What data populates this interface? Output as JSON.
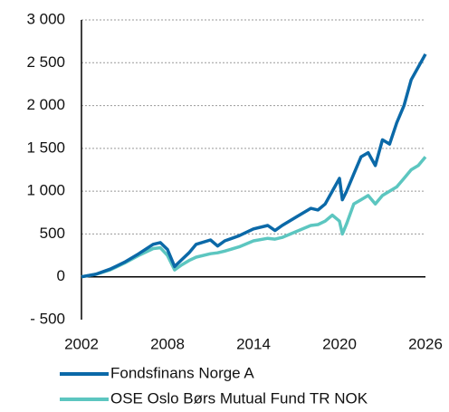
{
  "chart_data": {
    "type": "line",
    "x": [
      2002,
      2003,
      2004,
      2005,
      2006,
      2007,
      2007.5,
      2008,
      2008.5,
      2009,
      2009.5,
      2010,
      2011,
      2011.5,
      2012,
      2013,
      2014,
      2015,
      2015.5,
      2016,
      2017,
      2018,
      2018.5,
      2019,
      2019.5,
      2020,
      2020.2,
      2020.5,
      2021,
      2021.5,
      2022,
      2022.5,
      2023,
      2023.5,
      2024,
      2024.5,
      2025,
      2025.5,
      2026
    ],
    "series": [
      {
        "name": "Fondsfinans Norge A",
        "color": "#0b69a8",
        "values": [
          0,
          30,
          90,
          170,
          270,
          380,
          400,
          320,
          120,
          200,
          280,
          380,
          430,
          360,
          420,
          480,
          560,
          600,
          540,
          600,
          700,
          800,
          780,
          850,
          1000,
          1150,
          900,
          1000,
          1200,
          1400,
          1450,
          1300,
          1600,
          1550,
          1800,
          2000,
          2300,
          2450,
          2600
        ]
      },
      {
        "name": "OSE Oslo Børs Mutual Fund TR NOK",
        "color": "#5cc6c0",
        "values": [
          0,
          30,
          80,
          160,
          250,
          330,
          340,
          250,
          80,
          140,
          190,
          230,
          270,
          280,
          300,
          350,
          420,
          450,
          440,
          460,
          530,
          600,
          610,
          650,
          720,
          650,
          500,
          620,
          850,
          900,
          950,
          850,
          950,
          1000,
          1050,
          1150,
          1250,
          1300,
          1400
        ]
      }
    ],
    "xlim": [
      2002,
      2026
    ],
    "xticks": [
      2002,
      2008,
      2014,
      2020,
      2026
    ],
    "ylim": [
      -500,
      3000
    ],
    "yticks": [
      {
        "value": -500,
        "label": "- 500"
      },
      0,
      500,
      {
        "value": 1000,
        "label": "1 000"
      },
      {
        "value": 1500,
        "label": "1 500"
      },
      {
        "value": 2000,
        "label": "2 000"
      },
      {
        "value": 2500,
        "label": "2 500"
      },
      {
        "value": 3000,
        "label": "3 000"
      }
    ],
    "grid": true,
    "legend": "bottom"
  }
}
